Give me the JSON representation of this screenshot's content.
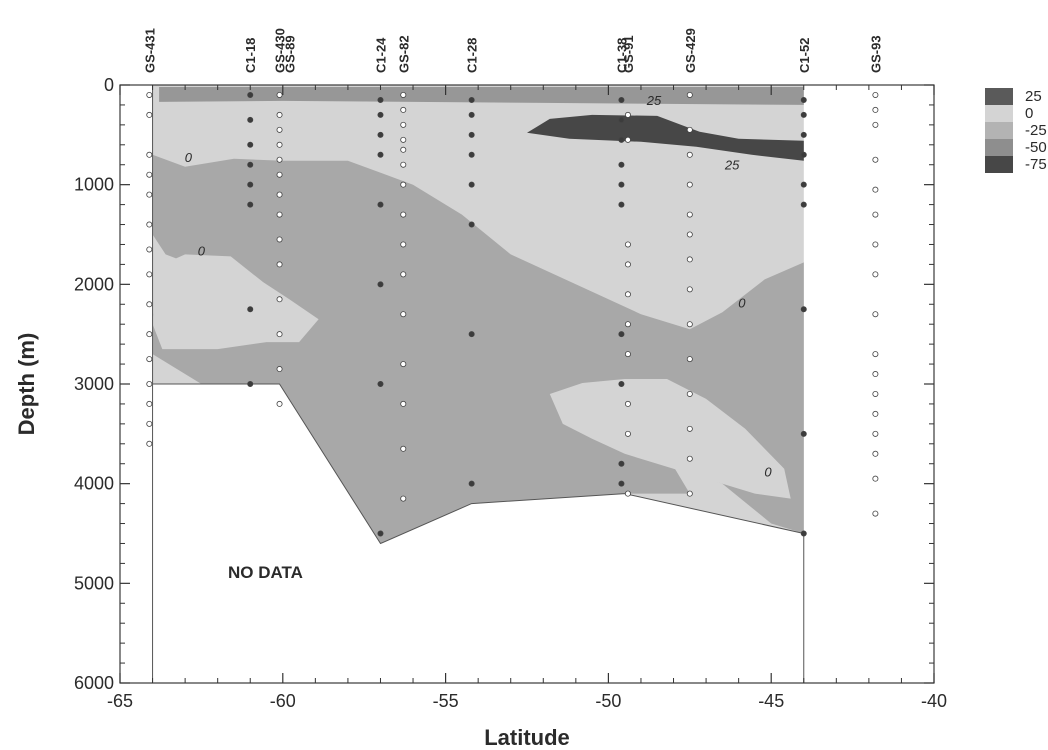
{
  "chart_data": {
    "type": "heatmap",
    "title": "",
    "xlabel": "Latitude",
    "ylabel": "Depth (m)",
    "xlim": [
      -65,
      -40
    ],
    "ylim": [
      0,
      6000
    ],
    "y_inverted": true,
    "x_ticks": [
      "-65",
      "-60",
      "-55",
      "-50",
      "-45",
      "-40"
    ],
    "y_ticks": [
      "0",
      "1000",
      "2000",
      "3000",
      "4000",
      "5000",
      "6000"
    ],
    "legend": {
      "position": "right",
      "entries": [
        {
          "label": "25",
          "color": "#5a5a5a"
        },
        {
          "label": "0",
          "color": "#d4d4d4"
        },
        {
          "label": "-25",
          "color": "#b3b3b3"
        },
        {
          "label": "-50",
          "color": "#8e8e8e"
        },
        {
          "label": "-75",
          "color": "#474747"
        }
      ]
    },
    "region_colors": {
      "light": "#d4d4d4",
      "medium": "#a8a8a8",
      "dark": "#474747",
      "surface": "#979797"
    },
    "stations": [
      {
        "name": "GS-431",
        "lat": -64.1,
        "filled": false,
        "depths": [
          100,
          300,
          700,
          900,
          1100,
          1400,
          1650,
          1900,
          2200,
          2500,
          2750,
          3000,
          3200,
          3400,
          3600
        ]
      },
      {
        "name": "C1-18",
        "lat": -61.0,
        "filled": true,
        "depths": [
          100,
          350,
          600,
          800,
          1000,
          1200,
          2250,
          3000
        ]
      },
      {
        "name": "GS-430",
        "lat": -60.1,
        "filled": false,
        "depths": [
          100,
          300,
          450,
          600,
          750,
          900,
          1100,
          1300,
          1550,
          1800,
          2150,
          2500,
          2850,
          3200
        ]
      },
      {
        "name": "GS-89",
        "lat": -59.8,
        "filled": false,
        "depths": []
      },
      {
        "name": "C1-24",
        "lat": -57.0,
        "filled": true,
        "depths": [
          150,
          300,
          500,
          700,
          1200,
          2000,
          3000,
          4500
        ]
      },
      {
        "name": "GS-82",
        "lat": -56.3,
        "filled": false,
        "depths": [
          100,
          250,
          400,
          550,
          650,
          800,
          1000,
          1300,
          1600,
          1900,
          2300,
          2800,
          3200,
          3650,
          4150
        ]
      },
      {
        "name": "C1-28",
        "lat": -54.2,
        "filled": true,
        "depths": [
          150,
          300,
          500,
          700,
          1000,
          1400,
          2500,
          4000
        ]
      },
      {
        "name": "C1-38",
        "lat": -49.6,
        "filled": true,
        "depths": [
          150,
          350,
          550,
          800,
          1000,
          1200,
          2500,
          3000,
          3800,
          4000
        ]
      },
      {
        "name": "GS-91",
        "lat": -49.4,
        "filled": false,
        "depths": [
          300,
          550,
          1600,
          1800,
          2100,
          2400,
          2700,
          3200,
          3500,
          4100
        ]
      },
      {
        "name": "GS-429",
        "lat": -47.5,
        "filled": false,
        "depths": [
          100,
          450,
          700,
          1000,
          1300,
          1500,
          1750,
          2050,
          2400,
          2750,
          3100,
          3450,
          3750,
          4100
        ]
      },
      {
        "name": "C1-52",
        "lat": -44.0,
        "filled": true,
        "depths": [
          150,
          300,
          500,
          700,
          1000,
          1200,
          2250,
          3500,
          4500
        ]
      },
      {
        "name": "GS-93",
        "lat": -41.8,
        "filled": false,
        "depths": [
          100,
          250,
          400,
          750,
          1050,
          1300,
          1600,
          1900,
          2300,
          2700,
          2900,
          3100,
          3300,
          3500,
          3700,
          3950,
          4300
        ]
      }
    ],
    "contour_labels": [
      {
        "text": "0",
        "lat": -62.9,
        "depth": 720
      },
      {
        "text": "0",
        "lat": -62.5,
        "depth": 1660
      },
      {
        "text": "25",
        "lat": -48.6,
        "depth": 150
      },
      {
        "text": "25",
        "lat": -46.2,
        "depth": 800
      },
      {
        "text": "0",
        "lat": -45.9,
        "depth": 2180
      },
      {
        "text": "0",
        "lat": -45.1,
        "depth": 3880
      }
    ],
    "annotation": "NO DATA"
  }
}
